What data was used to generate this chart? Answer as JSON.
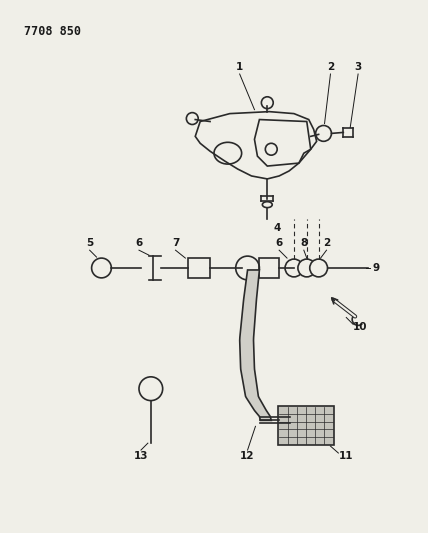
{
  "title": "7708 850",
  "bg_color": "#f0efe8",
  "line_color": "#2a2a2a",
  "text_color": "#1a1a1a",
  "figsize": [
    4.28,
    5.33
  ],
  "dpi": 100
}
